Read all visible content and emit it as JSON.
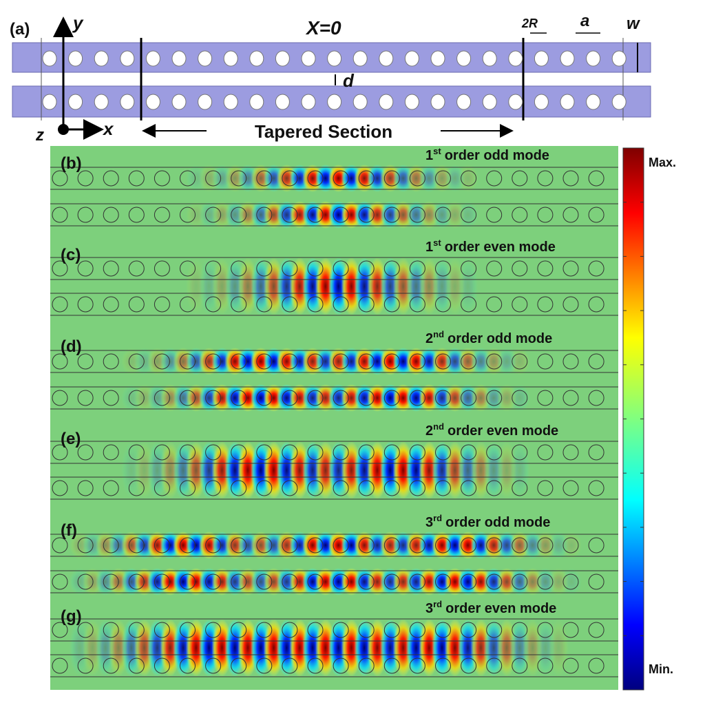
{
  "panel_a": {
    "label": "(a)",
    "y_axis": "y",
    "x0": "X=0",
    "two_r": "2R",
    "a": "a",
    "w": "w",
    "d": "d",
    "z_axis": "z",
    "x_axis": "x",
    "tapered": "Tapered Section"
  },
  "panels": [
    {
      "label": "(b)",
      "order": "1",
      "suffix": "st",
      "mode": "order odd mode"
    },
    {
      "label": "(c)",
      "order": "1",
      "suffix": "st",
      "mode": "order even mode"
    },
    {
      "label": "(d)",
      "order": "2",
      "suffix": "nd",
      "mode": "order odd mode"
    },
    {
      "label": "(e)",
      "order": "2",
      "suffix": "nd",
      "mode": "order even mode"
    },
    {
      "label": "(f)",
      "order": "3",
      "suffix": "rd",
      "mode": "order odd mode"
    },
    {
      "label": "(g)",
      "order": "3",
      "suffix": "rd",
      "mode": "order even mode"
    }
  ],
  "colorbar": {
    "max": "Max.",
    "min": "Min."
  }
}
